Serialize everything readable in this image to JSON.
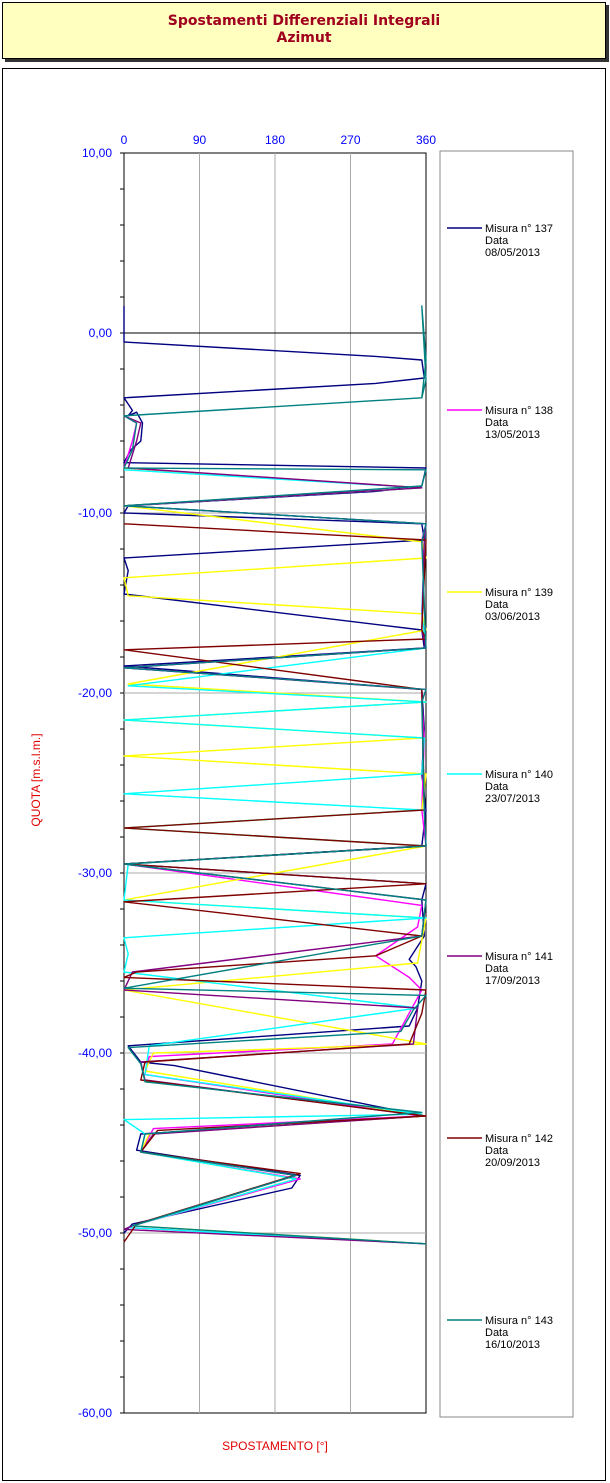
{
  "title": {
    "line1": "Spostamenti Differenziali Integrali",
    "line2": "Azimut"
  },
  "chart_data": {
    "type": "line",
    "title": "Spostamenti Differenziali Integrali - Azimut",
    "xlabel": "SPOSTAMENTO [°]",
    "ylabel": "QUOTA [m.s.l.m.]",
    "x_axis_position": "top",
    "xlim": [
      0,
      360
    ],
    "ylim": [
      -60,
      10
    ],
    "x_ticks": [
      "0",
      "90",
      "180",
      "270",
      "360"
    ],
    "y_ticks": [
      "10,00",
      "0,00",
      "-10,00",
      "-20,00",
      "-30,00",
      "-40,00",
      "-50,00",
      "-60,00"
    ],
    "grid": true,
    "legend_position": "right",
    "legend": [
      {
        "label": "Misura n° 137",
        "data_label": "Data",
        "date": "08/05/2013",
        "color": "#000080"
      },
      {
        "label": "Misura n° 138",
        "data_label": "Data",
        "date": "13/05/2013",
        "color": "#ff00ff"
      },
      {
        "label": "Misura n° 139",
        "data_label": "Data",
        "date": "03/06/2013",
        "color": "#ffff00"
      },
      {
        "label": "Misura n° 140",
        "data_label": "Data",
        "date": "23/07/2013",
        "color": "#00ffff"
      },
      {
        "label": "Misura n° 141",
        "data_label": "Data",
        "date": "17/09/2013",
        "color": "#800080"
      },
      {
        "label": "Misura n° 142",
        "data_label": "Data",
        "date": "20/09/2013",
        "color": "#800000"
      },
      {
        "label": "Misura n° 143",
        "data_label": "Data",
        "date": "16/10/2013",
        "color": "#008080"
      }
    ],
    "series": [
      {
        "color": "#000080",
        "points": [
          [
            0,
            1.5
          ],
          [
            0,
            -0.5
          ],
          [
            300,
            -1.3
          ],
          [
            355,
            -1.5
          ],
          [
            358,
            -2.5
          ],
          [
            300,
            -2.8
          ],
          [
            0,
            -3.6
          ],
          [
            10,
            -4.3
          ],
          [
            5,
            -4.6
          ],
          [
            15,
            -4.4
          ],
          [
            22,
            -5.0
          ],
          [
            20,
            -6.0
          ],
          [
            8,
            -6.5
          ],
          [
            0,
            -7.2
          ],
          [
            360,
            -7.5
          ],
          [
            355,
            -8.5
          ],
          [
            300,
            -8.8
          ],
          [
            5,
            -9.6
          ],
          [
            0,
            -10.0
          ],
          [
            355,
            -10.6
          ],
          [
            358,
            -11.5
          ],
          [
            0,
            -12.5
          ],
          [
            5,
            -13.2
          ],
          [
            0,
            -14.5
          ],
          [
            355,
            -16.5
          ],
          [
            358,
            -17.5
          ],
          [
            0,
            -18.5
          ],
          [
            355,
            -19.8
          ],
          [
            358,
            -22.0
          ],
          [
            355,
            -24.5
          ],
          [
            360,
            -26.5
          ],
          [
            355,
            -28.5
          ],
          [
            0,
            -29.5
          ],
          [
            360,
            -30.6
          ],
          [
            355,
            -31.5
          ],
          [
            358,
            -33.5
          ],
          [
            340,
            -34.8
          ],
          [
            348,
            -35.2
          ],
          [
            355,
            -36.0
          ],
          [
            350,
            -37.5
          ],
          [
            340,
            -38.5
          ],
          [
            5,
            -39.6
          ],
          [
            20,
            -40.5
          ],
          [
            60,
            -40.7
          ],
          [
            358,
            -43.5
          ],
          [
            20,
            -44.5
          ],
          [
            15,
            -45.4
          ],
          [
            210,
            -46.8
          ],
          [
            200,
            -47.5
          ],
          [
            10,
            -49.5
          ],
          [
            0,
            -50.0
          ]
        ]
      },
      {
        "color": "#ff00ff",
        "points": [
          [
            0,
            -4.6
          ],
          [
            15,
            -5.0
          ],
          [
            10,
            -6.0
          ],
          [
            0,
            -7.5
          ],
          [
            355,
            -8.6
          ],
          [
            0,
            -9.6
          ],
          [
            360,
            -10.6
          ],
          [
            355,
            -11.5
          ],
          [
            358,
            -12.5
          ],
          [
            355,
            -15.5
          ],
          [
            360,
            -17.5
          ],
          [
            0,
            -18.6
          ],
          [
            360,
            -19.8
          ],
          [
            355,
            -20.5
          ],
          [
            358,
            -22.5
          ],
          [
            355,
            -26.5
          ],
          [
            360,
            -28.5
          ],
          [
            0,
            -29.5
          ],
          [
            355,
            -31.8
          ],
          [
            350,
            -33.0
          ],
          [
            300,
            -34.6
          ],
          [
            340,
            -35.8
          ],
          [
            355,
            -36.5
          ],
          [
            320,
            -39.5
          ],
          [
            30,
            -40.2
          ],
          [
            25,
            -41.2
          ],
          [
            355,
            -43.5
          ],
          [
            35,
            -44.2
          ],
          [
            20,
            -45.5
          ],
          [
            210,
            -47.0
          ],
          [
            10,
            -49.6
          ],
          [
            5,
            -49.7
          ],
          [
            360,
            -50.6
          ]
        ]
      },
      {
        "color": "#ffff00",
        "points": [
          [
            0,
            -7.5
          ],
          [
            355,
            -8.6
          ],
          [
            0,
            -9.6
          ],
          [
            355,
            -11.6
          ],
          [
            360,
            -12.5
          ],
          [
            0,
            -13.6
          ],
          [
            5,
            -14.6
          ],
          [
            355,
            -15.6
          ],
          [
            360,
            -16.5
          ],
          [
            5,
            -19.5
          ],
          [
            360,
            -20.5
          ],
          [
            0,
            -21.5
          ],
          [
            355,
            -22.5
          ],
          [
            0,
            -23.5
          ],
          [
            360,
            -24.5
          ],
          [
            355,
            -26.5
          ],
          [
            0,
            -27.5
          ],
          [
            360,
            -28.5
          ],
          [
            0,
            -31.5
          ],
          [
            360,
            -32.5
          ],
          [
            350,
            -35.0
          ],
          [
            0,
            -36.5
          ],
          [
            360,
            -39.5
          ],
          [
            35,
            -40.0
          ],
          [
            25,
            -41.0
          ],
          [
            358,
            -43.5
          ],
          [
            30,
            -44.5
          ],
          [
            20,
            -45.5
          ],
          [
            205,
            -47.0
          ],
          [
            10,
            -49.6
          ],
          [
            360,
            -50.6
          ]
        ]
      },
      {
        "color": "#00ffff",
        "points": [
          [
            0,
            -7.6
          ],
          [
            355,
            -8.6
          ],
          [
            0,
            -9.6
          ],
          [
            360,
            -10.6
          ],
          [
            358,
            -11.8
          ],
          [
            355,
            -15.6
          ],
          [
            360,
            -17.5
          ],
          [
            5,
            -19.6
          ],
          [
            360,
            -20.5
          ],
          [
            0,
            -21.5
          ],
          [
            358,
            -22.5
          ],
          [
            355,
            -24.5
          ],
          [
            0,
            -25.6
          ],
          [
            355,
            -26.5
          ],
          [
            0,
            -27.5
          ],
          [
            360,
            -28.5
          ],
          [
            5,
            -29.5
          ],
          [
            0,
            -31.5
          ],
          [
            360,
            -32.5
          ],
          [
            0,
            -33.6
          ],
          [
            5,
            -34.5
          ],
          [
            0,
            -35.5
          ],
          [
            350,
            -37.5
          ],
          [
            30,
            -39.6
          ],
          [
            25,
            -41.2
          ],
          [
            355,
            -43.4
          ],
          [
            0,
            -43.7
          ],
          [
            25,
            -44.5
          ],
          [
            20,
            -45.5
          ],
          [
            205,
            -47.0
          ],
          [
            10,
            -49.6
          ],
          [
            5,
            -49.7
          ],
          [
            360,
            -50.6
          ]
        ]
      },
      {
        "color": "#800080",
        "points": [
          [
            0,
            -4.6
          ],
          [
            20,
            -5.0
          ],
          [
            15,
            -6.0
          ],
          [
            5,
            -7.5
          ],
          [
            355,
            -8.6
          ],
          [
            0,
            -9.6
          ],
          [
            360,
            -10.6
          ],
          [
            358,
            -11.5
          ],
          [
            355,
            -16.5
          ],
          [
            360,
            -17.5
          ],
          [
            0,
            -18.6
          ],
          [
            355,
            -19.8
          ],
          [
            358,
            -26.5
          ],
          [
            360,
            -28.5
          ],
          [
            0,
            -29.5
          ],
          [
            360,
            -31.5
          ],
          [
            355,
            -33.5
          ],
          [
            10,
            -35.5
          ],
          [
            0,
            -36.5
          ],
          [
            350,
            -37.5
          ],
          [
            345,
            -39.5
          ],
          [
            20,
            -40.5
          ],
          [
            25,
            -41.5
          ],
          [
            358,
            -43.5
          ],
          [
            35,
            -44.5
          ],
          [
            20,
            -45.5
          ],
          [
            205,
            -46.8
          ],
          [
            10,
            -49.6
          ],
          [
            0,
            -49.8
          ],
          [
            360,
            -50.6
          ]
        ]
      },
      {
        "color": "#800000",
        "points": [
          [
            0,
            -10.6
          ],
          [
            360,
            -11.5
          ],
          [
            355,
            -16.5
          ],
          [
            360,
            -17.0
          ],
          [
            0,
            -17.6
          ],
          [
            355,
            -19.8
          ],
          [
            358,
            -26.5
          ],
          [
            0,
            -27.5
          ],
          [
            360,
            -28.5
          ],
          [
            0,
            -29.5
          ],
          [
            360,
            -30.6
          ],
          [
            0,
            -31.6
          ],
          [
            355,
            -33.5
          ],
          [
            300,
            -34.6
          ],
          [
            15,
            -35.5
          ],
          [
            0,
            -35.8
          ],
          [
            360,
            -36.5
          ],
          [
            355,
            -37.8
          ],
          [
            340,
            -39.5
          ],
          [
            25,
            -40.5
          ],
          [
            20,
            -41.5
          ],
          [
            360,
            -43.5
          ],
          [
            40,
            -44.3
          ],
          [
            20,
            -45.5
          ],
          [
            210,
            -46.7
          ],
          [
            15,
            -49.5
          ],
          [
            0,
            -50.5
          ]
        ]
      },
      {
        "color": "#008080",
        "points": [
          [
            0,
            -4.6
          ],
          [
            355,
            -3.6
          ],
          [
            360,
            -1.5
          ],
          [
            355,
            1.5
          ],
          [
            360,
            -2.6
          ],
          [
            355,
            -3.6
          ],
          [
            0,
            -4.6
          ],
          [
            15,
            -5.0
          ],
          [
            10,
            -6.5
          ],
          [
            0,
            -7.5
          ],
          [
            360,
            -7.6
          ],
          [
            355,
            -8.5
          ],
          [
            0,
            -9.6
          ],
          [
            360,
            -10.6
          ],
          [
            355,
            -11.6
          ],
          [
            360,
            -17.5
          ],
          [
            0,
            -18.6
          ],
          [
            360,
            -19.8
          ],
          [
            355,
            -20.5
          ],
          [
            358,
            -26.5
          ],
          [
            360,
            -28.5
          ],
          [
            0,
            -29.5
          ],
          [
            360,
            -31.5
          ],
          [
            355,
            -33.5
          ],
          [
            0,
            -36.4
          ],
          [
            360,
            -36.8
          ],
          [
            345,
            -37.6
          ],
          [
            330,
            -38.8
          ],
          [
            5,
            -39.7
          ],
          [
            20,
            -40.6
          ],
          [
            25,
            -41.6
          ],
          [
            355,
            -43.3
          ],
          [
            25,
            -44.5
          ],
          [
            20,
            -45.5
          ],
          [
            205,
            -46.8
          ],
          [
            10,
            -49.6
          ],
          [
            360,
            -50.6
          ]
        ]
      }
    ]
  }
}
